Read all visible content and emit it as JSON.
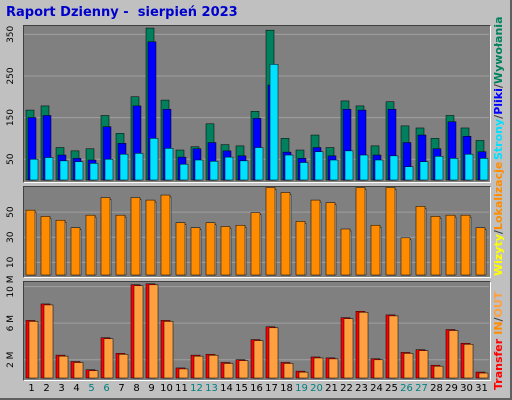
{
  "title": "Raport Dzienny -  sierpień 2023",
  "colors": {
    "background": "#c0c0c0",
    "panel": "#808080",
    "gridline": "#a0a0a0",
    "hits": "#00805c",
    "files": "#0000ff",
    "pages": "#00e0ff",
    "visits": "#ff8c00",
    "sites": "#ff8c00",
    "kbin": "#ff0000",
    "kbout": "#ffa040",
    "weekend": "#008080",
    "weekday": "#000000"
  },
  "legends": {
    "top": {
      "sep": "/",
      "hits": "Wywołania",
      "files": "Pliki",
      "pages": "Strony"
    },
    "middle": {
      "sep": "/",
      "sites": "Lokalizacje",
      "visits": "Wizyty"
    },
    "bottom": {
      "sep": "/",
      "kbin": "Transfer",
      "in": "IN",
      "out": "OUT"
    }
  },
  "chart_data": [
    {
      "type": "bar",
      "title": "Raport Dzienny -  sierpień 2023",
      "categories": [
        "1",
        "2",
        "3",
        "4",
        "5",
        "6",
        "7",
        "8",
        "9",
        "10",
        "11",
        "12",
        "13",
        "14",
        "15",
        "16",
        "17",
        "18",
        "19",
        "20",
        "21",
        "22",
        "23",
        "24",
        "25",
        "26",
        "27",
        "28",
        "29",
        "30",
        "31"
      ],
      "weekend_days": [
        "5",
        "6",
        "12",
        "13",
        "19",
        "20",
        "26",
        "27"
      ],
      "yticks": [
        "50",
        "150",
        "250",
        "350"
      ],
      "ylim": [
        0,
        370
      ],
      "series": [
        {
          "name": "Wywołania",
          "values": [
            168,
            178,
            78,
            70,
            75,
            155,
            112,
            200,
            365,
            192,
            72,
            80,
            135,
            85,
            82,
            165,
            360,
            100,
            72,
            108,
            78,
            190,
            178,
            82,
            188,
            130,
            125,
            100,
            155,
            125,
            95
          ]
        },
        {
          "name": "Pliki",
          "values": [
            150,
            155,
            60,
            52,
            48,
            128,
            88,
            178,
            332,
            170,
            55,
            75,
            90,
            70,
            58,
            148,
            228,
            67,
            52,
            78,
            58,
            170,
            168,
            60,
            170,
            90,
            108,
            75,
            140,
            105,
            68
          ]
        },
        {
          "name": "Strony",
          "values": [
            50,
            54,
            46,
            44,
            40,
            50,
            62,
            64,
            100,
            76,
            38,
            48,
            45,
            55,
            46,
            78,
            278,
            60,
            42,
            68,
            48,
            70,
            60,
            48,
            58,
            32,
            44,
            57,
            52,
            62,
            52
          ]
        }
      ]
    },
    {
      "type": "bar",
      "categories": [
        "1",
        "2",
        "3",
        "4",
        "5",
        "6",
        "7",
        "8",
        "9",
        "10",
        "11",
        "12",
        "13",
        "14",
        "15",
        "16",
        "17",
        "18",
        "19",
        "20",
        "21",
        "22",
        "23",
        "24",
        "25",
        "26",
        "27",
        "28",
        "29",
        "30",
        "31"
      ],
      "yticks": [
        "10",
        "30",
        "50"
      ],
      "ylim": [
        0,
        70
      ],
      "series": [
        {
          "name": "Lokalizacje",
          "values": [
            50,
            45,
            42,
            36,
            46,
            60,
            46,
            60,
            58,
            62,
            40,
            36,
            40,
            37,
            38,
            48,
            68,
            64,
            41,
            58,
            56,
            35,
            68,
            38,
            68,
            28,
            53,
            45,
            46,
            46,
            36
          ]
        },
        {
          "name": "Wizyty",
          "values": [
            50,
            45,
            42,
            36,
            46,
            60,
            46,
            60,
            58,
            62,
            40,
            36,
            40,
            37,
            38,
            48,
            68,
            64,
            41,
            58,
            56,
            35,
            68,
            38,
            68,
            28,
            53,
            45,
            46,
            46,
            36
          ]
        }
      ]
    },
    {
      "type": "bar",
      "categories": [
        "1",
        "2",
        "3",
        "4",
        "5",
        "6",
        "7",
        "8",
        "9",
        "10",
        "11",
        "12",
        "13",
        "14",
        "15",
        "16",
        "17",
        "18",
        "19",
        "20",
        "21",
        "22",
        "23",
        "24",
        "25",
        "26",
        "27",
        "28",
        "29",
        "30",
        "31"
      ],
      "yticks": [
        "2 M",
        "6 M",
        "10 M"
      ],
      "ylim": [
        0,
        10500000
      ],
      "series": [
        {
          "name": "Transfer",
          "values": [
            6300000,
            8100000,
            2500000,
            1800000,
            900000,
            4400000,
            2700000,
            10200000,
            10300000,
            6300000,
            1100000,
            2500000,
            2600000,
            1700000,
            2000000,
            4200000,
            5600000,
            1700000,
            750000,
            2300000,
            2200000,
            6600000,
            7300000,
            2100000,
            6900000,
            2800000,
            3100000,
            1400000,
            5300000,
            3800000,
            650000
          ]
        }
      ]
    }
  ]
}
